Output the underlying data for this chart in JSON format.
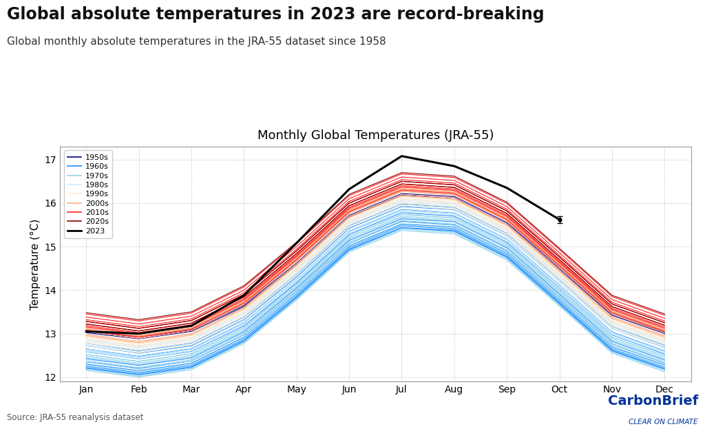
{
  "title": "Monthly Global Temperatures (JRA-55)",
  "main_title": "Global absolute temperatures in 2023 are record-breaking",
  "subtitle": "Global monthly absolute temperatures in the JRA-55 dataset since 1958",
  "source": "Source: JRA-55 reanalysis dataset",
  "ylabel": "Temperature (°C)",
  "months": [
    "Jan",
    "Feb",
    "Mar",
    "Apr",
    "May",
    "Jun",
    "Jul",
    "Aug",
    "Sep",
    "Oct",
    "Nov",
    "Dec"
  ],
  "ylim": [
    11.9,
    17.3
  ],
  "decade_colors": {
    "1950s": "#00008B",
    "1960s": "#1E90FF",
    "1970s": "#87CEEB",
    "1980s": "#C8E8FF",
    "1990s": "#FFE8C8",
    "2000s": "#FFA07A",
    "2010s": "#FF2020",
    "2020s": "#8B0000",
    "2023": "#000000"
  },
  "decade_alphas": {
    "1950s": 1.0,
    "1960s": 1.0,
    "1970s": 0.9,
    "1980s": 0.8,
    "1990s": 0.8,
    "2000s": 0.9,
    "2010s": 1.0,
    "2020s": 1.0,
    "2023": 1.0
  },
  "yearly_data": {
    "1958": [
      13.02,
      12.88,
      13.05,
      13.62,
      14.58,
      15.68,
      16.18,
      16.12,
      15.52,
      14.48,
      13.42,
      13.0
    ],
    "1959": [
      13.05,
      12.92,
      13.08,
      13.65,
      14.62,
      15.72,
      16.22,
      16.15,
      15.55,
      14.52,
      13.45,
      13.03
    ],
    "1960": [
      12.72,
      12.55,
      12.72,
      13.32,
      14.3,
      15.42,
      15.92,
      15.85,
      15.25,
      14.2,
      13.12,
      12.68
    ],
    "1961": [
      12.78,
      12.6,
      12.78,
      13.38,
      14.36,
      15.48,
      15.98,
      15.9,
      15.3,
      14.25,
      13.17,
      12.73
    ],
    "1962": [
      12.65,
      12.48,
      12.65,
      13.25,
      14.23,
      15.35,
      15.85,
      15.77,
      15.17,
      14.12,
      13.04,
      12.6
    ],
    "1963": [
      12.58,
      12.42,
      12.59,
      13.18,
      14.17,
      15.28,
      15.78,
      15.7,
      15.1,
      14.05,
      12.97,
      12.53
    ],
    "1964": [
      12.2,
      12.05,
      12.22,
      12.82,
      13.82,
      14.92,
      15.43,
      15.35,
      14.75,
      13.68,
      12.6,
      12.18
    ],
    "1965": [
      12.25,
      12.1,
      12.27,
      12.87,
      13.87,
      14.97,
      15.48,
      15.4,
      14.8,
      13.73,
      12.65,
      12.22
    ],
    "1966": [
      12.3,
      12.15,
      12.32,
      12.92,
      13.92,
      15.02,
      15.52,
      15.45,
      14.85,
      13.78,
      12.7,
      12.28
    ],
    "1967": [
      12.35,
      12.2,
      12.37,
      12.97,
      13.97,
      15.07,
      15.58,
      15.5,
      14.9,
      13.83,
      12.75,
      12.32
    ],
    "1968": [
      12.22,
      12.07,
      12.24,
      12.84,
      13.84,
      14.94,
      15.44,
      15.37,
      14.77,
      13.7,
      12.62,
      12.19
    ],
    "1969": [
      12.42,
      12.27,
      12.44,
      13.04,
      14.04,
      15.14,
      15.64,
      15.57,
      14.97,
      13.9,
      12.82,
      12.39
    ],
    "1970": [
      12.48,
      12.32,
      12.5,
      13.1,
      14.1,
      15.2,
      15.7,
      15.62,
      15.02,
      13.96,
      12.88,
      12.45
    ],
    "1971": [
      12.28,
      12.12,
      12.3,
      12.9,
      13.9,
      15.0,
      15.5,
      15.42,
      14.82,
      13.76,
      12.68,
      12.25
    ],
    "1972": [
      12.35,
      12.19,
      12.37,
      12.97,
      13.97,
      15.07,
      15.57,
      15.49,
      14.89,
      13.83,
      12.75,
      12.32
    ],
    "1973": [
      12.62,
      12.46,
      12.64,
      13.24,
      14.24,
      15.34,
      15.84,
      15.76,
      15.16,
      14.1,
      13.02,
      12.59
    ],
    "1974": [
      12.18,
      12.02,
      12.2,
      12.8,
      13.8,
      14.9,
      15.4,
      15.32,
      14.72,
      13.66,
      12.58,
      12.15
    ],
    "1975": [
      12.38,
      12.22,
      12.4,
      13.0,
      14.0,
      15.1,
      15.6,
      15.52,
      14.92,
      13.86,
      12.78,
      12.35
    ],
    "1976": [
      12.15,
      12.0,
      12.17,
      12.77,
      13.77,
      14.87,
      15.37,
      15.29,
      14.69,
      13.63,
      12.55,
      12.12
    ],
    "1977": [
      12.52,
      12.36,
      12.54,
      13.14,
      14.14,
      15.24,
      15.74,
      15.66,
      15.06,
      14.0,
      12.92,
      12.49
    ],
    "1978": [
      12.45,
      12.29,
      12.47,
      13.07,
      14.07,
      15.17,
      15.67,
      15.59,
      14.99,
      13.93,
      12.85,
      12.42
    ],
    "1979": [
      12.52,
      12.36,
      12.54,
      13.14,
      14.14,
      15.24,
      15.74,
      15.66,
      15.06,
      14.0,
      12.92,
      12.49
    ],
    "1980": [
      12.72,
      12.56,
      12.74,
      13.34,
      14.34,
      15.44,
      15.94,
      15.86,
      15.26,
      14.2,
      13.12,
      12.69
    ],
    "1981": [
      12.78,
      12.62,
      12.8,
      13.4,
      14.4,
      15.5,
      16.0,
      15.92,
      15.32,
      14.26,
      13.18,
      12.75
    ],
    "1982": [
      12.62,
      12.46,
      12.64,
      13.24,
      14.24,
      15.34,
      15.84,
      15.76,
      15.16,
      14.1,
      13.02,
      12.59
    ],
    "1983": [
      12.85,
      12.69,
      12.87,
      13.47,
      14.47,
      15.57,
      16.07,
      15.99,
      15.39,
      14.33,
      13.25,
      12.82
    ],
    "1984": [
      12.6,
      12.44,
      12.62,
      13.22,
      14.22,
      15.32,
      15.82,
      15.74,
      15.14,
      14.08,
      13.0,
      12.57
    ],
    "1985": [
      12.58,
      12.42,
      12.6,
      13.2,
      14.2,
      15.3,
      15.8,
      15.72,
      15.12,
      14.06,
      12.98,
      12.55
    ],
    "1986": [
      12.65,
      12.49,
      12.67,
      13.27,
      14.27,
      15.37,
      15.87,
      15.79,
      15.19,
      14.13,
      13.05,
      12.62
    ],
    "1987": [
      12.82,
      12.66,
      12.84,
      13.44,
      14.44,
      15.54,
      16.04,
      15.96,
      15.36,
      14.3,
      13.22,
      12.79
    ],
    "1988": [
      12.88,
      12.72,
      12.9,
      13.5,
      14.5,
      15.6,
      16.1,
      16.02,
      15.42,
      14.36,
      13.28,
      12.85
    ],
    "1989": [
      12.75,
      12.59,
      12.77,
      13.37,
      14.37,
      15.47,
      15.97,
      15.89,
      15.29,
      14.23,
      13.15,
      12.72
    ],
    "1990": [
      12.98,
      12.82,
      13.0,
      13.6,
      14.6,
      15.7,
      16.2,
      16.12,
      15.52,
      14.46,
      13.38,
      12.95
    ],
    "1991": [
      12.92,
      12.76,
      12.94,
      13.54,
      14.54,
      15.64,
      16.14,
      16.06,
      15.46,
      14.4,
      13.32,
      12.89
    ],
    "1992": [
      12.72,
      12.56,
      12.74,
      13.34,
      14.34,
      15.44,
      15.94,
      15.86,
      15.26,
      14.2,
      13.12,
      12.69
    ],
    "1993": [
      12.78,
      12.62,
      12.8,
      13.4,
      14.4,
      15.5,
      16.0,
      15.92,
      15.32,
      14.26,
      13.18,
      12.75
    ],
    "1994": [
      12.88,
      12.72,
      12.9,
      13.5,
      14.5,
      15.6,
      16.1,
      16.02,
      15.42,
      14.36,
      13.28,
      12.85
    ],
    "1995": [
      12.95,
      12.79,
      12.97,
      13.57,
      14.57,
      15.67,
      16.17,
      16.09,
      15.49,
      14.43,
      13.35,
      12.92
    ],
    "1996": [
      12.82,
      12.66,
      12.84,
      13.44,
      14.44,
      15.54,
      16.04,
      15.96,
      15.36,
      14.3,
      13.22,
      12.79
    ],
    "1997": [
      12.92,
      12.76,
      12.94,
      13.54,
      14.54,
      15.64,
      16.14,
      16.06,
      15.46,
      14.4,
      13.32,
      12.89
    ],
    "1998": [
      13.12,
      12.96,
      13.14,
      13.74,
      14.74,
      15.84,
      16.34,
      16.26,
      15.66,
      14.6,
      13.52,
      13.09
    ],
    "1999": [
      12.88,
      12.72,
      12.9,
      13.5,
      14.5,
      15.6,
      16.1,
      16.02,
      15.42,
      14.36,
      13.28,
      12.85
    ],
    "2000": [
      12.95,
      12.79,
      12.97,
      13.57,
      14.57,
      15.67,
      16.17,
      16.09,
      15.49,
      14.43,
      13.35,
      12.92
    ],
    "2001": [
      13.05,
      12.89,
      13.07,
      13.67,
      14.67,
      15.77,
      16.27,
      16.19,
      15.59,
      14.53,
      13.45,
      13.02
    ],
    "2002": [
      13.1,
      12.94,
      13.12,
      13.72,
      14.72,
      15.82,
      16.32,
      16.24,
      15.64,
      14.58,
      13.5,
      13.07
    ],
    "2003": [
      13.12,
      12.96,
      13.14,
      13.74,
      14.74,
      15.84,
      16.34,
      16.26,
      15.66,
      14.6,
      13.52,
      13.09
    ],
    "2004": [
      13.05,
      12.89,
      13.07,
      13.67,
      14.67,
      15.77,
      16.27,
      16.19,
      15.59,
      14.53,
      13.45,
      13.02
    ],
    "2005": [
      13.15,
      12.99,
      13.17,
      13.77,
      14.77,
      15.87,
      16.37,
      16.29,
      15.69,
      14.63,
      13.55,
      13.12
    ],
    "2006": [
      13.08,
      12.92,
      13.1,
      13.7,
      14.7,
      15.8,
      16.3,
      16.22,
      15.62,
      14.56,
      13.48,
      13.05
    ],
    "2007": [
      13.18,
      13.02,
      13.2,
      13.8,
      14.8,
      15.9,
      16.4,
      16.32,
      15.72,
      14.66,
      13.58,
      13.15
    ],
    "2008": [
      12.98,
      12.82,
      13.0,
      13.6,
      14.6,
      15.7,
      16.2,
      16.12,
      15.52,
      14.46,
      13.38,
      12.95
    ],
    "2009": [
      13.1,
      12.94,
      13.12,
      13.72,
      14.72,
      15.82,
      16.32,
      16.24,
      15.64,
      14.58,
      13.5,
      13.07
    ],
    "2010": [
      13.22,
      13.06,
      13.24,
      13.84,
      14.84,
      15.94,
      16.44,
      16.36,
      15.76,
      14.7,
      13.62,
      13.19
    ],
    "2011": [
      13.08,
      12.92,
      13.1,
      13.7,
      14.7,
      15.8,
      16.3,
      16.22,
      15.62,
      14.56,
      13.48,
      13.05
    ],
    "2012": [
      13.15,
      12.99,
      13.17,
      13.77,
      14.77,
      15.87,
      16.37,
      16.29,
      15.69,
      14.63,
      13.55,
      13.12
    ],
    "2013": [
      13.18,
      13.02,
      13.2,
      13.8,
      14.8,
      15.9,
      16.4,
      16.32,
      15.72,
      14.66,
      13.58,
      13.15
    ],
    "2014": [
      13.22,
      13.06,
      13.24,
      13.84,
      14.84,
      15.94,
      16.44,
      16.36,
      15.76,
      14.7,
      13.62,
      13.19
    ],
    "2015": [
      13.28,
      13.12,
      13.3,
      13.9,
      14.9,
      16.0,
      16.5,
      16.42,
      15.82,
      14.76,
      13.68,
      13.25
    ],
    "2016": [
      13.45,
      13.29,
      13.47,
      14.07,
      15.07,
      16.17,
      16.67,
      16.59,
      15.99,
      14.93,
      13.85,
      13.42
    ],
    "2017": [
      13.38,
      13.22,
      13.4,
      14.0,
      15.0,
      16.1,
      16.6,
      16.52,
      15.92,
      14.86,
      13.78,
      13.35
    ],
    "2018": [
      13.28,
      13.12,
      13.3,
      13.9,
      14.9,
      16.0,
      16.5,
      16.42,
      15.82,
      14.76,
      13.68,
      13.25
    ],
    "2019": [
      13.32,
      13.16,
      13.34,
      13.94,
      14.94,
      16.04,
      16.54,
      16.46,
      15.86,
      14.8,
      13.72,
      13.29
    ],
    "2020": [
      13.48,
      13.32,
      13.5,
      14.1,
      15.1,
      16.2,
      16.7,
      16.62,
      16.02,
      14.96,
      13.88,
      13.45
    ],
    "2021": [
      13.22,
      13.06,
      13.24,
      13.84,
      14.84,
      15.94,
      16.44,
      16.36,
      15.76,
      14.7,
      13.62,
      13.19
    ],
    "2022": [
      13.28,
      13.12,
      13.3,
      13.9,
      14.9,
      16.0,
      16.5,
      16.42,
      15.82,
      14.76,
      13.68,
      13.25
    ],
    "2023": [
      13.05,
      13.0,
      13.18,
      13.88,
      15.08,
      16.32,
      17.08,
      16.85,
      16.35,
      15.62,
      null,
      null
    ]
  },
  "decade_map": {
    "1958": "1950s",
    "1959": "1950s",
    "1960": "1960s",
    "1961": "1960s",
    "1962": "1960s",
    "1963": "1960s",
    "1964": "1960s",
    "1965": "1960s",
    "1966": "1960s",
    "1967": "1960s",
    "1968": "1960s",
    "1969": "1960s",
    "1970": "1970s",
    "1971": "1970s",
    "1972": "1970s",
    "1973": "1970s",
    "1974": "1970s",
    "1975": "1970s",
    "1976": "1970s",
    "1977": "1970s",
    "1978": "1970s",
    "1979": "1970s",
    "1980": "1980s",
    "1981": "1980s",
    "1982": "1980s",
    "1983": "1980s",
    "1984": "1980s",
    "1985": "1980s",
    "1986": "1980s",
    "1987": "1980s",
    "1988": "1980s",
    "1989": "1980s",
    "1990": "1990s",
    "1991": "1990s",
    "1992": "1990s",
    "1993": "1990s",
    "1994": "1990s",
    "1995": "1990s",
    "1996": "1990s",
    "1997": "1990s",
    "1998": "1990s",
    "1999": "1990s",
    "2000": "2000s",
    "2001": "2000s",
    "2002": "2000s",
    "2003": "2000s",
    "2004": "2000s",
    "2005": "2000s",
    "2006": "2000s",
    "2007": "2000s",
    "2008": "2000s",
    "2009": "2000s",
    "2010": "2010s",
    "2011": "2010s",
    "2012": "2010s",
    "2013": "2010s",
    "2014": "2010s",
    "2015": "2010s",
    "2016": "2010s",
    "2017": "2010s",
    "2018": "2010s",
    "2019": "2010s",
    "2020": "2020s",
    "2021": "2020s",
    "2022": "2020s",
    "2023": "2023"
  },
  "errorbar_yerr": 0.08,
  "carbonbrief_color": "#003399",
  "cb_clear_color": "#003399"
}
